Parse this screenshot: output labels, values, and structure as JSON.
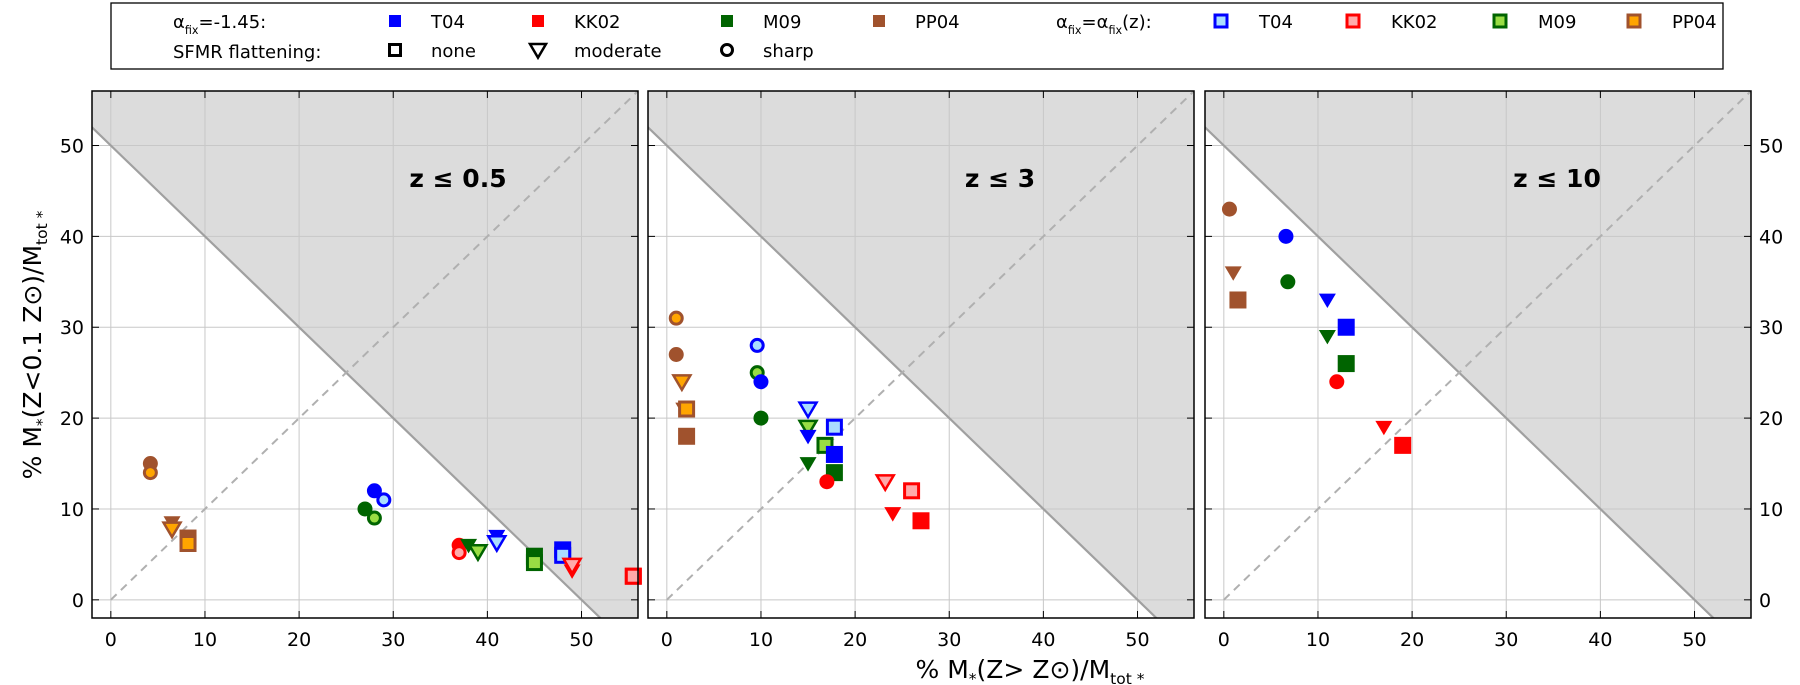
{
  "chart_data": {
    "type": "scatter",
    "xlabel": "% M*(Z> Z⊙)/Mtot*",
    "ylabel": "% M*(Z<0.1 Z⊙)/Mtot*",
    "xlim": [
      -2,
      56
    ],
    "ylim": [
      -2,
      56
    ],
    "xticks": [
      0,
      10,
      20,
      30,
      40,
      50
    ],
    "yticks": [
      0,
      10,
      20,
      30,
      40,
      50
    ],
    "grid": true,
    "legend": {
      "placement": "top-center",
      "row1_label": "αfix=-1.45:",
      "row2_label": "SFMR flattening:",
      "row1b_label": "αfix=αfix(z):",
      "calibrations": [
        {
          "name": "T04",
          "color": "#0000ff",
          "inner": "#aaddff"
        },
        {
          "name": "KK02",
          "color": "#ff0000",
          "inner": "#ffaaaa"
        },
        {
          "name": "M09",
          "color": "#006400",
          "inner": "#99dd44"
        },
        {
          "name": "PP04",
          "color": "#a0522d",
          "inner": "#ffa500"
        }
      ],
      "flattening": [
        {
          "marker": "square",
          "label": "none"
        },
        {
          "marker": "triangle",
          "label": "moderate"
        },
        {
          "marker": "circle",
          "label": "sharp"
        }
      ]
    },
    "reference_lines": [
      {
        "style": "solid",
        "description": "x + y = 50 boundary, region above shaded"
      },
      {
        "style": "dashed",
        "description": "y = x"
      }
    ],
    "panels": [
      {
        "title": "z ≤ 0.5",
        "points": [
          {
            "cal": "PP04",
            "marker": "circle",
            "alpha": "fixed",
            "x": 4.2,
            "y": 15
          },
          {
            "cal": "PP04",
            "marker": "circle",
            "alpha": "z",
            "x": 4.2,
            "y": 14
          },
          {
            "cal": "PP04",
            "marker": "triangle",
            "alpha": "fixed",
            "x": 6.5,
            "y": 8.5
          },
          {
            "cal": "PP04",
            "marker": "triangle",
            "alpha": "z",
            "x": 6.5,
            "y": 7.8
          },
          {
            "cal": "PP04",
            "marker": "square",
            "alpha": "fixed",
            "x": 8.2,
            "y": 6.8
          },
          {
            "cal": "PP04",
            "marker": "square",
            "alpha": "z",
            "x": 8.2,
            "y": 6.2
          },
          {
            "cal": "T04",
            "marker": "circle",
            "alpha": "fixed",
            "x": 28,
            "y": 12
          },
          {
            "cal": "T04",
            "marker": "circle",
            "alpha": "z",
            "x": 29,
            "y": 11
          },
          {
            "cal": "M09",
            "marker": "circle",
            "alpha": "fixed",
            "x": 27,
            "y": 10
          },
          {
            "cal": "M09",
            "marker": "circle",
            "alpha": "z",
            "x": 28,
            "y": 9
          },
          {
            "cal": "KK02",
            "marker": "circle",
            "alpha": "fixed",
            "x": 37,
            "y": 6
          },
          {
            "cal": "KK02",
            "marker": "circle",
            "alpha": "z",
            "x": 37,
            "y": 5.2
          },
          {
            "cal": "M09",
            "marker": "triangle",
            "alpha": "fixed",
            "x": 38,
            "y": 6
          },
          {
            "cal": "M09",
            "marker": "triangle",
            "alpha": "z",
            "x": 39,
            "y": 5.3
          },
          {
            "cal": "T04",
            "marker": "triangle",
            "alpha": "fixed",
            "x": 41,
            "y": 7
          },
          {
            "cal": "T04",
            "marker": "triangle",
            "alpha": "z",
            "x": 41,
            "y": 6.3
          },
          {
            "cal": "M09",
            "marker": "square",
            "alpha": "fixed",
            "x": 45,
            "y": 4.8
          },
          {
            "cal": "M09",
            "marker": "square",
            "alpha": "z",
            "x": 45,
            "y": 4.1
          },
          {
            "cal": "T04",
            "marker": "square",
            "alpha": "fixed",
            "x": 48,
            "y": 5.5
          },
          {
            "cal": "T04",
            "marker": "square",
            "alpha": "z",
            "x": 48,
            "y": 4.9
          },
          {
            "cal": "KK02",
            "marker": "triangle",
            "alpha": "fixed",
            "x": 49,
            "y": 3.2
          },
          {
            "cal": "KK02",
            "marker": "triangle",
            "alpha": "z",
            "x": 49,
            "y": 3.8
          },
          {
            "cal": "KK02",
            "marker": "square",
            "alpha": "fixed",
            "x": 55.5,
            "y": 2.6
          },
          {
            "cal": "KK02",
            "marker": "square",
            "alpha": "z",
            "x": 55.5,
            "y": 2.6
          }
        ]
      },
      {
        "title": "z ≤ 3",
        "points": [
          {
            "cal": "PP04",
            "marker": "circle",
            "alpha": "z",
            "x": 1,
            "y": 31
          },
          {
            "cal": "PP04",
            "marker": "circle",
            "alpha": "fixed",
            "x": 1,
            "y": 27
          },
          {
            "cal": "PP04",
            "marker": "triangle",
            "alpha": "z",
            "x": 1.6,
            "y": 24
          },
          {
            "cal": "PP04",
            "marker": "triangle",
            "alpha": "fixed",
            "x": 1.8,
            "y": 21
          },
          {
            "cal": "PP04",
            "marker": "square",
            "alpha": "z",
            "x": 2.1,
            "y": 21
          },
          {
            "cal": "PP04",
            "marker": "square",
            "alpha": "fixed",
            "x": 2.1,
            "y": 18
          },
          {
            "cal": "T04",
            "marker": "circle",
            "alpha": "z",
            "x": 9.6,
            "y": 28
          },
          {
            "cal": "M09",
            "marker": "circle",
            "alpha": "z",
            "x": 9.6,
            "y": 25
          },
          {
            "cal": "T04",
            "marker": "circle",
            "alpha": "fixed",
            "x": 10,
            "y": 24
          },
          {
            "cal": "M09",
            "marker": "circle",
            "alpha": "fixed",
            "x": 10,
            "y": 20
          },
          {
            "cal": "T04",
            "marker": "triangle",
            "alpha": "z",
            "x": 15,
            "y": 21
          },
          {
            "cal": "M09",
            "marker": "triangle",
            "alpha": "z",
            "x": 15,
            "y": 19
          },
          {
            "cal": "T04",
            "marker": "triangle",
            "alpha": "fixed",
            "x": 15,
            "y": 18
          },
          {
            "cal": "M09",
            "marker": "triangle",
            "alpha": "fixed",
            "x": 15,
            "y": 15
          },
          {
            "cal": "T04",
            "marker": "square",
            "alpha": "z",
            "x": 17.8,
            "y": 19
          },
          {
            "cal": "M09",
            "marker": "square",
            "alpha": "z",
            "x": 16.8,
            "y": 17
          },
          {
            "cal": "T04",
            "marker": "square",
            "alpha": "fixed",
            "x": 17.8,
            "y": 16
          },
          {
            "cal": "M09",
            "marker": "square",
            "alpha": "fixed",
            "x": 17.8,
            "y": 14
          },
          {
            "cal": "KK02",
            "marker": "circle",
            "alpha": "fixed",
            "x": 17,
            "y": 13
          },
          {
            "cal": "KK02",
            "marker": "triangle",
            "alpha": "z",
            "x": 23.2,
            "y": 13
          },
          {
            "cal": "KK02",
            "marker": "triangle",
            "alpha": "fixed",
            "x": 24,
            "y": 9.5
          },
          {
            "cal": "KK02",
            "marker": "square",
            "alpha": "z",
            "x": 26,
            "y": 12
          },
          {
            "cal": "KK02",
            "marker": "square",
            "alpha": "fixed",
            "x": 27,
            "y": 8.7
          }
        ]
      },
      {
        "title": "z ≤ 10",
        "points": [
          {
            "cal": "PP04",
            "marker": "circle",
            "alpha": "fixed",
            "x": 0.6,
            "y": 43
          },
          {
            "cal": "PP04",
            "marker": "triangle",
            "alpha": "fixed",
            "x": 1,
            "y": 36
          },
          {
            "cal": "PP04",
            "marker": "square",
            "alpha": "fixed",
            "x": 1.5,
            "y": 33
          },
          {
            "cal": "T04",
            "marker": "circle",
            "alpha": "fixed",
            "x": 6.6,
            "y": 40
          },
          {
            "cal": "M09",
            "marker": "circle",
            "alpha": "fixed",
            "x": 6.8,
            "y": 35
          },
          {
            "cal": "T04",
            "marker": "triangle",
            "alpha": "fixed",
            "x": 11,
            "y": 33
          },
          {
            "cal": "M09",
            "marker": "triangle",
            "alpha": "fixed",
            "x": 11,
            "y": 29
          },
          {
            "cal": "T04",
            "marker": "square",
            "alpha": "fixed",
            "x": 13,
            "y": 30
          },
          {
            "cal": "M09",
            "marker": "square",
            "alpha": "fixed",
            "x": 13,
            "y": 26
          },
          {
            "cal": "KK02",
            "marker": "circle",
            "alpha": "fixed",
            "x": 12,
            "y": 24
          },
          {
            "cal": "KK02",
            "marker": "triangle",
            "alpha": "fixed",
            "x": 17,
            "y": 19
          },
          {
            "cal": "KK02",
            "marker": "square",
            "alpha": "fixed",
            "x": 19,
            "y": 17
          }
        ]
      }
    ]
  }
}
